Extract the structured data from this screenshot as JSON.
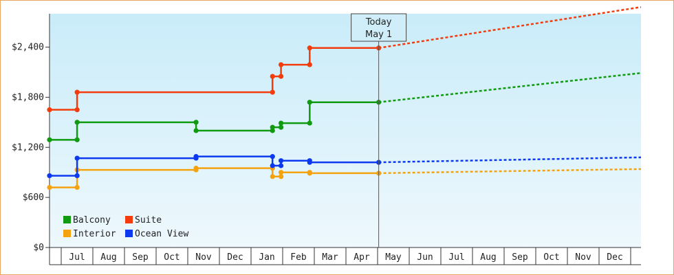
{
  "chart_data": {
    "type": "line",
    "title": "",
    "xlabel": "",
    "ylabel": "",
    "ylim": [
      0,
      2800
    ],
    "grid": false,
    "y_ticks": [
      0,
      600,
      1200,
      1800,
      2400
    ],
    "y_tick_labels": [
      "$0",
      "$600",
      "$1,200",
      "$1,800",
      "$2,400"
    ],
    "x_tick_labels": [
      "Jul",
      "Aug",
      "Sep",
      "Oct",
      "Nov",
      "Dec",
      "Jan",
      "Feb",
      "Mar",
      "Apr",
      "May",
      "Jun",
      "Jul",
      "Aug",
      "Sep",
      "Oct",
      "Nov",
      "Dec"
    ],
    "x_range_days": [
      0,
      557
    ],
    "legend_position": "bottom-left",
    "annotation": {
      "text_line1": "Today",
      "text_line2": "May 1",
      "day": 310
    },
    "series": [
      {
        "name": "Balcony",
        "color": "#0f9a10",
        "history_days": [
          0,
          26,
          26,
          138,
          138,
          210,
          210,
          218,
          218,
          245,
          245,
          310
        ],
        "history_values": [
          1290,
          1290,
          1500,
          1500,
          1400,
          1400,
          1440,
          1440,
          1490,
          1490,
          1740,
          1740
        ],
        "markers_days": [
          0,
          26,
          26,
          138,
          138,
          210,
          210,
          218,
          218,
          245,
          245,
          310
        ],
        "forecast_days": [
          310,
          557
        ],
        "forecast_values": [
          1740,
          2090
        ]
      },
      {
        "name": "Suite",
        "color": "#f23c0c",
        "history_days": [
          0,
          26,
          26,
          210,
          210,
          218,
          218,
          245,
          245,
          310
        ],
        "history_values": [
          1650,
          1650,
          1860,
          1860,
          2050,
          2050,
          2190,
          2190,
          2390,
          2390
        ],
        "markers_days": [
          0,
          26,
          26,
          210,
          210,
          218,
          218,
          245,
          245,
          310
        ],
        "forecast_days": [
          310,
          557
        ],
        "forecast_values": [
          2390,
          2880
        ]
      },
      {
        "name": "Interior",
        "color": "#f5a20f",
        "history_days": [
          0,
          26,
          26,
          138,
          138,
          210,
          210,
          218,
          218,
          245,
          245,
          310
        ],
        "history_values": [
          720,
          720,
          930,
          930,
          950,
          950,
          850,
          850,
          900,
          900,
          890,
          890
        ],
        "markers_days": [
          0,
          26,
          26,
          138,
          138,
          210,
          210,
          218,
          218,
          245,
          245,
          310
        ],
        "forecast_days": [
          310,
          557
        ],
        "forecast_values": [
          890,
          940
        ]
      },
      {
        "name": "Ocean View",
        "color": "#0c39f0",
        "history_days": [
          0,
          26,
          26,
          138,
          138,
          210,
          210,
          218,
          218,
          245,
          245,
          310
        ],
        "history_values": [
          860,
          860,
          1070,
          1070,
          1090,
          1090,
          980,
          980,
          1040,
          1040,
          1020,
          1020
        ],
        "markers_days": [
          0,
          26,
          26,
          138,
          138,
          210,
          210,
          218,
          218,
          245,
          245,
          310
        ],
        "forecast_days": [
          310,
          557
        ],
        "forecast_values": [
          1020,
          1080
        ]
      }
    ]
  }
}
